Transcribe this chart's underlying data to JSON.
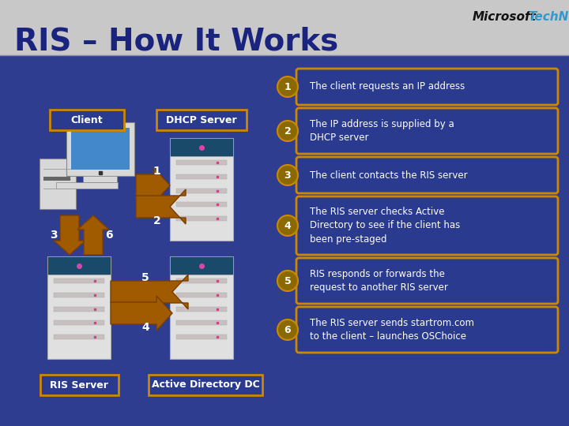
{
  "title": "RIS – How It Works",
  "title_color": "#1a237e",
  "header_bg": "#c8c8c8",
  "body_bg": "#2e3d8f",
  "ms_text": "Microsoft",
  "tn_text": "TechNet",
  "ms_color": "#111111",
  "tn_color": "#3399cc",
  "labels": {
    "client": "Client",
    "dhcp": "DHCP Server",
    "ris": "RIS Server",
    "ad": "Active Directory DC"
  },
  "steps": [
    "The client requests an IP address",
    "The IP address is supplied by a\nDHCP server",
    "The client contacts the RIS server",
    "The RIS server checks Active\nDirectory to see if the client has\nbeen pre-staged",
    "RIS responds or forwards the\nrequest to another RIS server",
    "The RIS server sends startrom.com\nto the client – launches OSChoice"
  ],
  "arrow_color": "#a05a00",
  "arrow_edge": "#7a3f00",
  "box_edge_color": "#cc8800",
  "box_fill_color": "#2a3b8f",
  "step_num_fill": "#8a6a00",
  "label_box_edge": "#cc8800",
  "label_box_fill": "#2a3b8f",
  "server_body": "#e0e0e0",
  "server_top": "#1a4a6a",
  "server_stripe": "#c0c0c0",
  "server_bay_light": "#cc44aa",
  "computer_body": "#d8d8d8",
  "computer_screen": "#4488cc"
}
